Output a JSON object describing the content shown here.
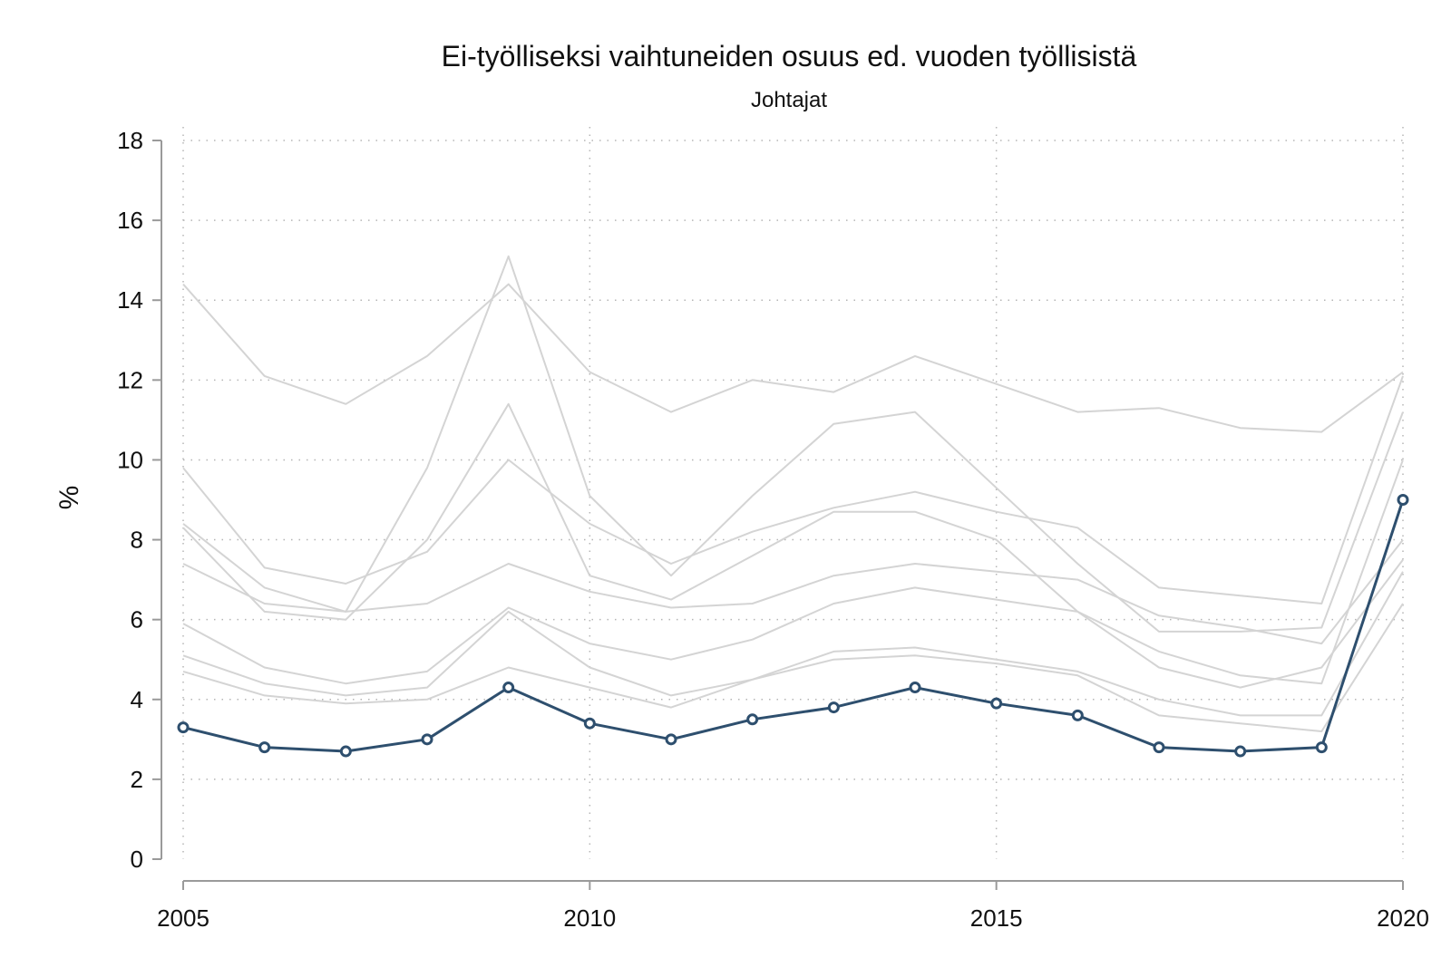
{
  "chart_data": {
    "type": "line",
    "title": "Ei-työlliseksi vaihtuneiden osuus ed. vuoden työllisistä",
    "subtitle": "Johtajat",
    "xlabel": "",
    "ylabel": "%",
    "xlim": [
      2005,
      2020
    ],
    "ylim": [
      0,
      18
    ],
    "x": [
      2005,
      2006,
      2007,
      2008,
      2009,
      2010,
      2011,
      2012,
      2013,
      2014,
      2015,
      2016,
      2017,
      2018,
      2019,
      2020
    ],
    "x_ticks": [
      "2005",
      "2010",
      "2015",
      "2020"
    ],
    "y_ticks": [
      "0",
      "2",
      "4",
      "6",
      "8",
      "10",
      "12",
      "14",
      "16",
      "18"
    ],
    "grid": "dotted",
    "highlight_series": {
      "values": [
        3.3,
        2.8,
        2.7,
        3.0,
        4.3,
        3.4,
        3.0,
        3.5,
        3.8,
        4.3,
        3.9,
        3.6,
        2.8,
        2.7,
        2.8,
        9.0
      ],
      "color": "#2e4f6e",
      "markers": "hollow-circle"
    },
    "background_series": {
      "color": "#d4d4d4",
      "values": [
        [
          14.4,
          12.1,
          11.4,
          12.6,
          14.4,
          12.2,
          11.2,
          12.0,
          11.7,
          12.6,
          11.9,
          11.2,
          11.3,
          10.8,
          10.7,
          12.2
        ],
        [
          9.8,
          7.3,
          6.9,
          7.7,
          10.0,
          8.4,
          7.4,
          8.2,
          8.8,
          9.2,
          8.7,
          8.3,
          6.8,
          6.6,
          6.4,
          12.1
        ],
        [
          8.4,
          6.8,
          6.2,
          9.8,
          15.1,
          9.1,
          7.1,
          9.1,
          10.9,
          11.2,
          9.3,
          7.4,
          5.7,
          5.7,
          5.8,
          11.2
        ],
        [
          8.3,
          6.2,
          6.0,
          8.0,
          11.4,
          7.1,
          6.5,
          7.6,
          8.7,
          8.7,
          8.0,
          6.2,
          5.2,
          4.6,
          4.4,
          10.0
        ],
        [
          7.4,
          6.4,
          6.2,
          6.4,
          7.4,
          6.7,
          6.3,
          6.4,
          7.1,
          7.4,
          7.2,
          7.0,
          6.1,
          5.8,
          5.4,
          8.0
        ],
        [
          5.9,
          4.8,
          4.4,
          4.7,
          6.3,
          5.4,
          5.0,
          5.5,
          6.4,
          6.8,
          6.5,
          6.2,
          4.8,
          4.3,
          4.8,
          7.5
        ],
        [
          5.1,
          4.4,
          4.1,
          4.3,
          6.2,
          4.8,
          4.1,
          4.5,
          5.2,
          5.3,
          5.0,
          4.7,
          4.0,
          3.6,
          3.6,
          7.2
        ],
        [
          4.7,
          4.1,
          3.9,
          4.0,
          4.8,
          4.3,
          3.8,
          4.5,
          5.0,
          5.1,
          4.9,
          4.6,
          3.6,
          3.4,
          3.2,
          6.4
        ]
      ]
    }
  }
}
